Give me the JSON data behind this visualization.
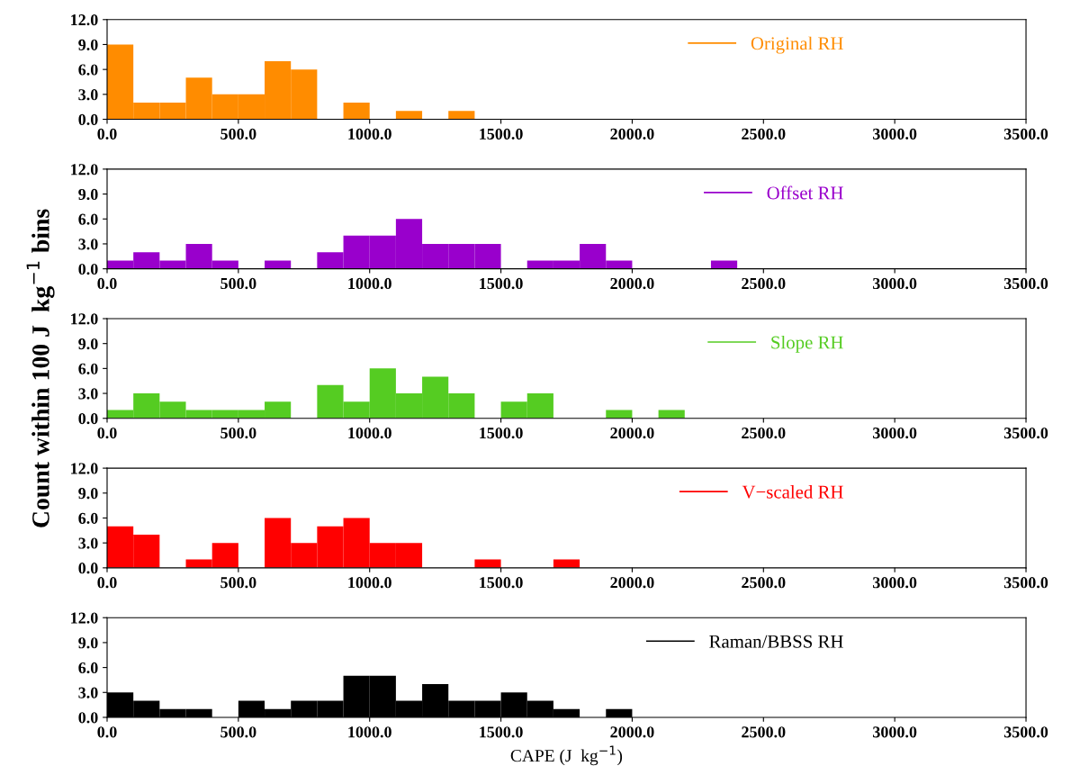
{
  "chart_data": [
    {
      "type": "histogram",
      "bins": [
        0,
        100,
        200,
        300,
        400,
        500,
        600,
        700,
        800,
        900,
        1000,
        1100,
        1200,
        1300,
        1400
      ],
      "series": [
        {
          "name": "Original RH",
          "color": "#ff8c00",
          "values": [
            9,
            2,
            2,
            5,
            3,
            3,
            7,
            6,
            0,
            2,
            0,
            1,
            0,
            1
          ]
        }
      ],
      "xlim": [
        0,
        3500
      ],
      "ylim": [
        0,
        12
      ],
      "xticks": [
        {
          "value": 0,
          "label": "0.0"
        },
        {
          "value": 500,
          "label": "500.0"
        },
        {
          "value": 1000,
          "label": "1000.0"
        },
        {
          "value": 1500,
          "label": "1500.0"
        },
        {
          "value": 2000,
          "label": "2000.0"
        },
        {
          "value": 2500,
          "label": "2500.0"
        },
        {
          "value": 3000,
          "label": "3000.0"
        },
        {
          "value": 3500,
          "label": "3500.0"
        }
      ],
      "yticks": [
        {
          "value": 0,
          "label": "0.0"
        },
        {
          "value": 3,
          "label": "3.0"
        },
        {
          "value": 6,
          "label": "6.0"
        },
        {
          "value": 9,
          "label": "9.0"
        },
        {
          "value": 12,
          "label": "12.0"
        }
      ],
      "legend": "top right"
    },
    {
      "type": "histogram",
      "bins": [
        0,
        100,
        200,
        300,
        400,
        500,
        600,
        700,
        800,
        900,
        1000,
        1100,
        1200,
        1300,
        1400,
        1500,
        1600,
        1700,
        1800,
        1900,
        2000,
        2100,
        2200,
        2300,
        2400
      ],
      "series": [
        {
          "name": "Offset RH",
          "color": "#9900cc",
          "values": [
            1,
            2,
            1,
            3,
            1,
            0,
            1,
            0,
            2,
            4,
            4,
            6,
            3,
            3,
            3,
            0,
            1,
            1,
            3,
            1,
            0,
            0,
            0,
            1
          ]
        }
      ],
      "xlim": [
        0,
        3500
      ],
      "ylim": [
        0,
        12
      ],
      "xticks": [
        {
          "value": 0,
          "label": "0.0"
        },
        {
          "value": 500,
          "label": "500.0"
        },
        {
          "value": 1000,
          "label": "1000.0"
        },
        {
          "value": 1500,
          "label": "1500.0"
        },
        {
          "value": 2000,
          "label": "2000.0"
        },
        {
          "value": 2500,
          "label": "2500.0"
        },
        {
          "value": 3000,
          "label": "3000.0"
        },
        {
          "value": 3500,
          "label": "3500.0"
        }
      ],
      "yticks": [
        {
          "value": 0,
          "label": "0.0"
        },
        {
          "value": 3,
          "label": "3.0"
        },
        {
          "value": 6,
          "label": "6.0"
        },
        {
          "value": 9,
          "label": "9.0"
        },
        {
          "value": 12,
          "label": "12.0"
        }
      ],
      "legend": "top right"
    },
    {
      "type": "histogram",
      "ylabel": "Count within 100 J  kg$^{−1}$ bins",
      "bins": [
        0,
        100,
        200,
        300,
        400,
        500,
        600,
        700,
        800,
        900,
        1000,
        1100,
        1200,
        1300,
        1400,
        1500,
        1600,
        1700,
        1800,
        1900,
        2000,
        2100,
        2200
      ],
      "series": [
        {
          "name": "Slope RH",
          "color": "#55cc22",
          "values": [
            1,
            3,
            2,
            1,
            1,
            1,
            2,
            0,
            4,
            2,
            6,
            3,
            5,
            3,
            0,
            2,
            3,
            0,
            0,
            1,
            0,
            1
          ]
        }
      ],
      "xlim": [
        0,
        3500
      ],
      "ylim": [
        0,
        12
      ],
      "xticks": [
        {
          "value": 0,
          "label": "0.0"
        },
        {
          "value": 500,
          "label": "500.0"
        },
        {
          "value": 1000,
          "label": "1000.0"
        },
        {
          "value": 1500,
          "label": "1500.0"
        },
        {
          "value": 2000,
          "label": "2000.0"
        },
        {
          "value": 2500,
          "label": "2500.0"
        },
        {
          "value": 3000,
          "label": "3000.0"
        },
        {
          "value": 3500,
          "label": "3500.0"
        }
      ],
      "yticks": [
        {
          "value": 0,
          "label": "0.0"
        },
        {
          "value": 3,
          "label": "3.0"
        },
        {
          "value": 6,
          "label": "6.0"
        },
        {
          "value": 9,
          "label": "9.0"
        },
        {
          "value": 12,
          "label": "12.0"
        }
      ],
      "legend": "top right"
    },
    {
      "type": "histogram",
      "bins": [
        0,
        100,
        200,
        300,
        400,
        500,
        600,
        700,
        800,
        900,
        1000,
        1100,
        1200,
        1300,
        1400,
        1500,
        1600,
        1700,
        1800
      ],
      "series": [
        {
          "name": "V−scaled RH",
          "color": "#ff0000",
          "values": [
            5,
            4,
            0,
            1,
            3,
            0,
            6,
            3,
            5,
            6,
            3,
            3,
            0,
            0,
            1,
            0,
            0,
            1
          ]
        }
      ],
      "xlim": [
        0,
        3500
      ],
      "ylim": [
        0,
        12
      ],
      "xticks": [
        {
          "value": 0,
          "label": "0.0"
        },
        {
          "value": 500,
          "label": "500.0"
        },
        {
          "value": 1000,
          "label": "1000.0"
        },
        {
          "value": 1500,
          "label": "1500.0"
        },
        {
          "value": 2000,
          "label": "2000.0"
        },
        {
          "value": 2500,
          "label": "2500.0"
        },
        {
          "value": 3000,
          "label": "3000.0"
        },
        {
          "value": 3500,
          "label": "3500.0"
        }
      ],
      "yticks": [
        {
          "value": 0,
          "label": "0.0"
        },
        {
          "value": 3,
          "label": "3.0"
        },
        {
          "value": 6,
          "label": "6.0"
        },
        {
          "value": 9,
          "label": "9.0"
        },
        {
          "value": 12,
          "label": "12.0"
        }
      ],
      "legend": "top right"
    },
    {
      "type": "histogram",
      "xlabel": "CAPE (J  kg$^{−1}$)",
      "bins": [
        0,
        100,
        200,
        300,
        400,
        500,
        600,
        700,
        800,
        900,
        1000,
        1100,
        1200,
        1300,
        1400,
        1500,
        1600,
        1700,
        1800,
        1900,
        2000
      ],
      "series": [
        {
          "name": "Raman/BBSS RH",
          "color": "#000000",
          "values": [
            3,
            2,
            1,
            1,
            0,
            2,
            1,
            2,
            2,
            5,
            5,
            2,
            4,
            2,
            2,
            3,
            2,
            1,
            0,
            1
          ]
        }
      ],
      "xlim": [
        0,
        3500
      ],
      "ylim": [
        0,
        12
      ],
      "xticks": [
        {
          "value": 0,
          "label": "0.0"
        },
        {
          "value": 500,
          "label": "500.0"
        },
        {
          "value": 1000,
          "label": "1000.0"
        },
        {
          "value": 1500,
          "label": "1500.0"
        },
        {
          "value": 2000,
          "label": "2000.0"
        },
        {
          "value": 2500,
          "label": "2500.0"
        },
        {
          "value": 3000,
          "label": "3000.0"
        },
        {
          "value": 3500,
          "label": "3500.0"
        }
      ],
      "yticks": [
        {
          "value": 0,
          "label": "0.0"
        },
        {
          "value": 3,
          "label": "3.0"
        },
        {
          "value": 6,
          "label": "6.0"
        },
        {
          "value": 9,
          "label": "9.0"
        },
        {
          "value": 12,
          "label": "12.0"
        }
      ],
      "legend": "top right"
    }
  ]
}
